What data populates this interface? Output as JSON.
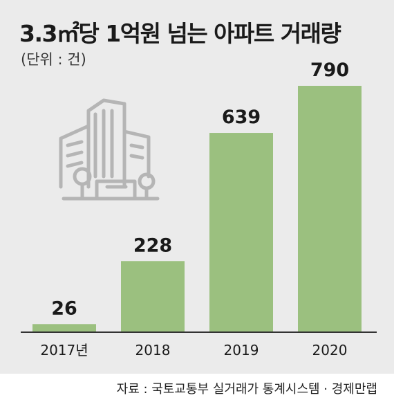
{
  "title": "3.3㎡당 1억원 넘는 아파트 거래량",
  "unit": "(단위 : 건)",
  "source": "자료 : 국토교통부 실거래가 통계시스템 · 경제만랩",
  "colors": {
    "bar": "#9bc07f",
    "panel": "#ebebeb",
    "axis": "#333333",
    "icon": "#b5b5b5"
  },
  "icon": "apartment-buildings-icon",
  "chart_data": {
    "type": "bar",
    "categories": [
      "2017년",
      "2018",
      "2019",
      "2020"
    ],
    "values": [
      26,
      228,
      639,
      790
    ],
    "value_labels": [
      "26",
      "228",
      "639",
      "790"
    ],
    "title": "3.3㎡당 1억원 넘는 아파트 거래량",
    "ylabel": "",
    "xlabel": "",
    "grid": false,
    "legend": "none"
  }
}
